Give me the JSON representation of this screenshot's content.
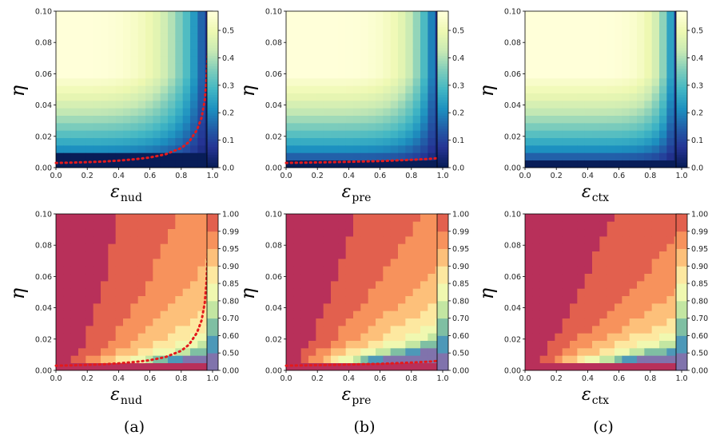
{
  "colors": {
    "ygb": [
      "#081d58",
      "#253494",
      "#225ea8",
      "#1d91c0",
      "#41b6c4",
      "#7fcdbb",
      "#c7e9b4",
      "#edf8b1",
      "#ffffd9"
    ],
    "spectral": [
      "#8073ac",
      "#4d98b8",
      "#7fbfa3",
      "#c3e6a2",
      "#f0f8b0",
      "#fde8a0",
      "#fdc07a",
      "#f7925c",
      "#e2604e",
      "#b8305a"
    ],
    "frontier": "#e41a1c"
  },
  "chart_data": [
    {
      "type": "heatmap",
      "panel": "a",
      "row": "top",
      "ylabel": "η",
      "xlabel_main": "ε",
      "xlabel_sub": "nud",
      "x_ticks": [
        "0.0",
        "0.2",
        "0.4",
        "0.6",
        "0.8",
        "1.0"
      ],
      "y_ticks": [
        "0.00",
        "0.02",
        "0.04",
        "0.06",
        "0.08",
        "0.10"
      ],
      "colorbar_ticks": [
        "0.0",
        "0.1",
        "0.2",
        "0.3",
        "0.4",
        "0.5"
      ],
      "xlim": [
        0,
        1
      ],
      "ylim": [
        0,
        0.1
      ],
      "vmax": 0.57,
      "rolloff": 4,
      "floor": 0.006,
      "frontier": [
        [
          0,
          0.003
        ],
        [
          0.1,
          0.0032
        ],
        [
          0.2,
          0.0035
        ],
        [
          0.3,
          0.0039
        ],
        [
          0.4,
          0.0045
        ],
        [
          0.5,
          0.0053
        ],
        [
          0.6,
          0.0065
        ],
        [
          0.7,
          0.0085
        ],
        [
          0.8,
          0.0125
        ],
        [
          0.85,
          0.0165
        ],
        [
          0.9,
          0.024
        ],
        [
          0.93,
          0.032
        ],
        [
          0.95,
          0.043
        ],
        [
          0.96,
          0.055
        ],
        [
          0.965,
          0.065
        ],
        [
          0.97,
          0.075
        ]
      ]
    },
    {
      "type": "heatmap",
      "panel": "b",
      "row": "top",
      "ylabel": "η",
      "xlabel_main": "ε",
      "xlabel_sub": "pre",
      "x_ticks": [
        "0.0",
        "0.2",
        "0.4",
        "0.6",
        "0.8",
        "1.0"
      ],
      "y_ticks": [
        "0.00",
        "0.02",
        "0.04",
        "0.06",
        "0.08",
        "0.10"
      ],
      "colorbar_ticks": [
        "0.0",
        "0.1",
        "0.2",
        "0.3",
        "0.4",
        "0.5"
      ],
      "xlim": [
        0,
        1
      ],
      "ylim": [
        0,
        0.1
      ],
      "vmax": 0.57,
      "rolloff": 6,
      "floor": 0.004,
      "frontier": [
        [
          0,
          0.003
        ],
        [
          0.2,
          0.0033
        ],
        [
          0.4,
          0.0037
        ],
        [
          0.6,
          0.0042
        ],
        [
          0.8,
          0.005
        ],
        [
          0.9,
          0.0055
        ],
        [
          1.0,
          0.0062
        ]
      ]
    },
    {
      "type": "heatmap",
      "panel": "c",
      "row": "top",
      "ylabel": "η",
      "xlabel_main": "ε",
      "xlabel_sub": "ctx",
      "x_ticks": [
        "0.0",
        "0.2",
        "0.4",
        "0.6",
        "0.8",
        "1.0"
      ],
      "y_ticks": [
        "0.00",
        "0.02",
        "0.04",
        "0.06",
        "0.08",
        "0.10"
      ],
      "colorbar_ticks": [
        "0.0",
        "0.1",
        "0.2",
        "0.3",
        "0.4",
        "0.5"
      ],
      "xlim": [
        0,
        1
      ],
      "ylim": [
        0,
        0.1
      ],
      "vmax": 0.57,
      "rolloff": 9,
      "floor": 0.002,
      "frontier": []
    },
    {
      "type": "heatmap",
      "panel": "a",
      "row": "bottom",
      "ylabel": "η",
      "xlabel_main": "ε",
      "xlabel_sub": "nud",
      "x_ticks": [
        "0.0",
        "0.2",
        "0.4",
        "0.6",
        "0.8",
        "1.0"
      ],
      "y_ticks": [
        "0.00",
        "0.02",
        "0.04",
        "0.06",
        "0.08",
        "0.10"
      ],
      "colorbar_ticks": [
        "0.00",
        "0.50",
        "0.60",
        "0.70",
        "0.80",
        "0.85",
        "0.90",
        "0.95",
        "0.99",
        "1.00"
      ],
      "xlim": [
        0,
        1
      ],
      "ylim": [
        0,
        0.1
      ],
      "scale": 2.2,
      "power": 0.5,
      "offset": 0.02,
      "frontier": [
        [
          0,
          0.003
        ],
        [
          0.1,
          0.0032
        ],
        [
          0.2,
          0.0035
        ],
        [
          0.3,
          0.0039
        ],
        [
          0.4,
          0.0045
        ],
        [
          0.5,
          0.0053
        ],
        [
          0.6,
          0.0065
        ],
        [
          0.7,
          0.0085
        ],
        [
          0.8,
          0.0125
        ],
        [
          0.85,
          0.0165
        ],
        [
          0.9,
          0.024
        ],
        [
          0.93,
          0.032
        ],
        [
          0.95,
          0.043
        ],
        [
          0.96,
          0.055
        ],
        [
          0.965,
          0.065
        ],
        [
          0.97,
          0.075
        ]
      ]
    },
    {
      "type": "heatmap",
      "panel": "b",
      "row": "bottom",
      "ylabel": "η",
      "xlabel_main": "ε",
      "xlabel_sub": "pre",
      "x_ticks": [
        "0.0",
        "0.2",
        "0.4",
        "0.6",
        "0.8",
        "1.0"
      ],
      "y_ticks": [
        "0.00",
        "0.02",
        "0.04",
        "0.06",
        "0.08",
        "0.10"
      ],
      "colorbar_ticks": [
        "0.00",
        "0.50",
        "0.60",
        "0.70",
        "0.80",
        "0.85",
        "0.90",
        "0.95",
        "0.99",
        "1.00"
      ],
      "xlim": [
        0,
        1
      ],
      "ylim": [
        0,
        0.1
      ],
      "scale": 2.0,
      "power": 0.7,
      "offset": 0.04,
      "frontier": [
        [
          0,
          0.003
        ],
        [
          0.2,
          0.0033
        ],
        [
          0.4,
          0.0037
        ],
        [
          0.6,
          0.0042
        ],
        [
          0.8,
          0.005
        ],
        [
          0.9,
          0.0055
        ],
        [
          1.0,
          0.0062
        ]
      ]
    },
    {
      "type": "heatmap",
      "panel": "c",
      "row": "bottom",
      "ylabel": "η",
      "xlabel_main": "ε",
      "xlabel_sub": "ctx",
      "x_ticks": [
        "0.0",
        "0.2",
        "0.4",
        "0.6",
        "0.8",
        "1.0"
      ],
      "y_ticks": [
        "0.00",
        "0.02",
        "0.04",
        "0.06",
        "0.08",
        "0.10"
      ],
      "colorbar_ticks": [
        "0.00",
        "0.50",
        "0.60",
        "0.70",
        "0.80",
        "0.85",
        "0.90",
        "0.95",
        "0.99",
        "1.00"
      ],
      "xlim": [
        0,
        1
      ],
      "ylim": [
        0,
        0.1
      ],
      "scale": 1.6,
      "power": 0.8,
      "offset": 0.06,
      "frontier": []
    }
  ],
  "captions": [
    "(a)",
    "(b)",
    "(c)"
  ]
}
